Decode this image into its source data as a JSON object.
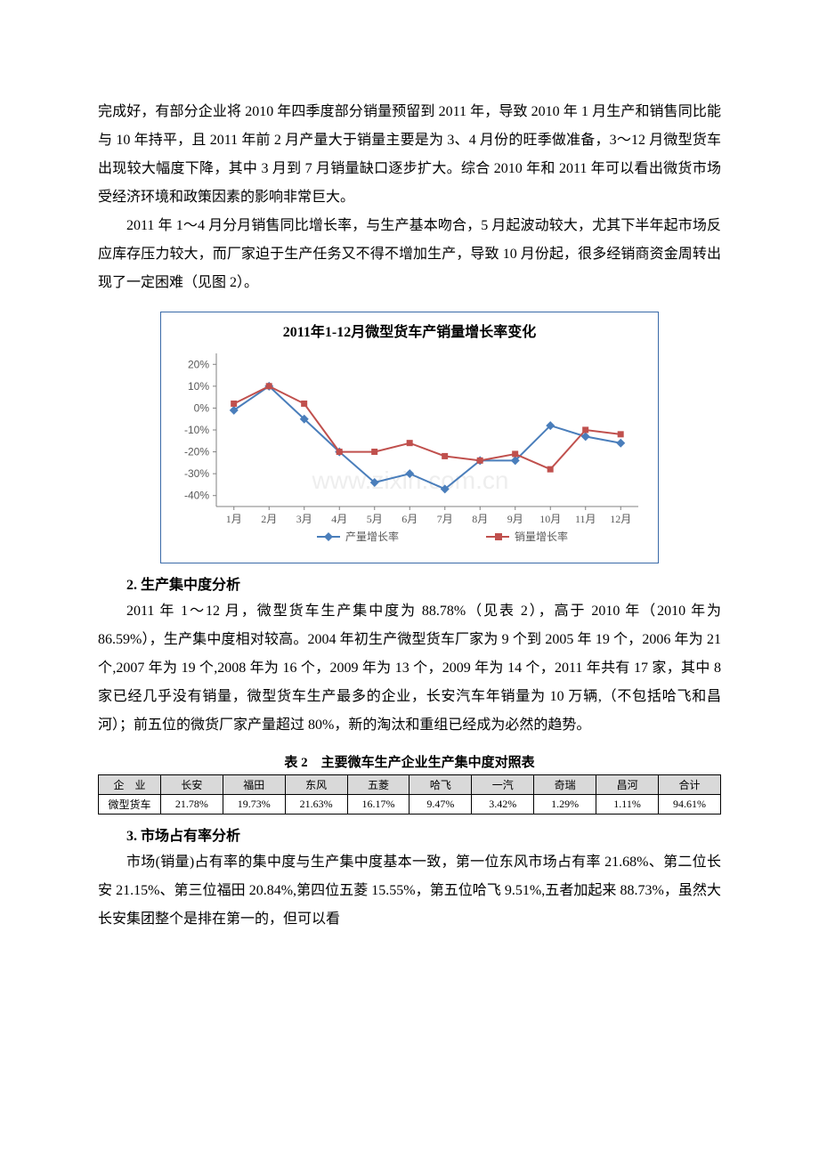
{
  "paragraphs": {
    "p1": "完成好，有部分企业将 2010 年四季度部分销量预留到 2011 年，导致 2010 年 1 月生产和销售同比能与 10 年持平，且 2011 年前 2 月产量大于销量主要是为 3、4 月份的旺季做准备，3～12 月微型货车出现较大幅度下降，其中 3 月到 7 月销量缺口逐步扩大。综合 2010 年和 2011 年可以看出微货市场受经济环境和政策因素的影响非常巨大。",
    "p2": "2011 年 1～4 月分月销售同比增长率，与生产基本吻合，5 月起波动较大，尤其下半年起市场反应库存压力较大，而厂家迫于生产任务又不得不增加生产，导致 10 月份起，很多经销商资金周转出现了一定困难（见图 2）。",
    "h1": "2. 生产集中度分析",
    "p3": "2011 年 1～12 月，微型货车生产集中度为 88.78%（见表 2），高于 2010 年（2010 年为 86.59%），生产集中度相对较高。2004 年初生产微型货车厂家为 9 个到 2005 年 19 个，2006 年为 21 个,2007 年为 19 个,2008 年为 16 个，2009 年为 13 个，2009 年为 14 个，2011 年共有 17 家，其中 8 家已经几乎没有销量，微型货车生产最多的企业，长安汽车年销量为 10 万辆,（不包括哈飞和昌河）；前五位的微货厂家产量超过 80%，新的淘汰和重组已经成为必然的趋势。",
    "h2": "3. 市场占有率分析",
    "p4": "市场(销量)占有率的集中度与生产集中度基本一致，第一位东风市场占有率 21.68%、第二位长安 21.15%、第三位福田 20.84%,第四位五菱 15.55%，第五位哈飞 9.51%,五者加起来 88.73%，虽然大长安集团整个是排在第一的，但可以看"
  },
  "chart": {
    "title": "2011年1-12月微型货车产销量增长率变化",
    "type": "line",
    "x_labels": [
      "1月",
      "2月",
      "3月",
      "4月",
      "5月",
      "6月",
      "7月",
      "8月",
      "9月",
      "10月",
      "11月",
      "12月"
    ],
    "y_ticks": [
      -40,
      -30,
      -20,
      -10,
      0,
      10,
      20
    ],
    "y_tick_labels": [
      "-40%",
      "-30%",
      "-20%",
      "-10%",
      "0%",
      "10%",
      "20%"
    ],
    "ylim": [
      -45,
      25
    ],
    "series": [
      {
        "name": "产量增长率",
        "color": "#4a7ebb",
        "marker": "diamond",
        "data": [
          -1,
          10,
          -5,
          -20,
          -34,
          -30,
          -37,
          -24,
          -24,
          -8,
          -13,
          -16
        ]
      },
      {
        "name": "销量增长率",
        "color": "#c0504d",
        "marker": "square",
        "data": [
          2,
          10,
          2,
          -20,
          -20,
          -16,
          -22,
          -24,
          -21,
          -28,
          -10,
          -12
        ]
      }
    ],
    "axis_color": "#808080",
    "grid_color": "#d9d9d9",
    "label_fontsize": 12,
    "line_width": 2,
    "marker_size": 5,
    "background_color": "#ffffff",
    "legend": {
      "items": [
        "产量增长率",
        "销量增长率"
      ],
      "colors": [
        "#4a7ebb",
        "#c0504d"
      ]
    },
    "watermark": "www.zixin.com.cn"
  },
  "table2": {
    "caption": "表 2　主要微车生产企业生产集中度对照表",
    "header_bg": "#d9d9d9",
    "columns": [
      "企　业",
      "长安",
      "福田",
      "东风",
      "五菱",
      "哈飞",
      "一汽",
      "奇瑞",
      "昌河",
      "合计"
    ],
    "rows": [
      [
        "微型货车",
        "21.78%",
        "19.73%",
        "21.63%",
        "16.17%",
        "9.47%",
        "3.42%",
        "1.29%",
        "1.11%",
        "94.61%"
      ]
    ]
  }
}
